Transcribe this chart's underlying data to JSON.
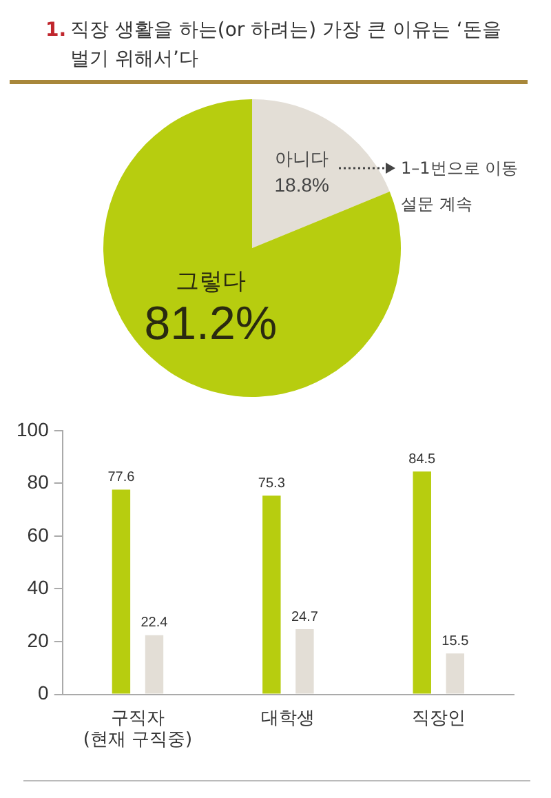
{
  "chart_data": [
    {
      "type": "pie",
      "title": "1. 직장 생활을 하는(or 하려는) 가장 큰 이유는 ‘돈을 벌기 위해서’다",
      "categories": [
        "아니다",
        "그렇다"
      ],
      "values": [
        18.8,
        81.2
      ],
      "colors": [
        "#e3ded6",
        "#b7cd0f"
      ],
      "value_labels": [
        "18.8%",
        "81.2%"
      ],
      "annotations": [
        "1–1번으로 이동",
        "설문 계속"
      ]
    },
    {
      "type": "bar",
      "categories": [
        "구직자\n(현재 구직중)",
        "대학생",
        "직장인"
      ],
      "series": [
        {
          "color": "#b7cd0f",
          "values": [
            77.6,
            75.3,
            84.5
          ]
        },
        {
          "color": "#e3ded6",
          "values": [
            22.4,
            24.7,
            15.5
          ]
        }
      ],
      "ylim": [
        0,
        100
      ],
      "yticks": [
        0,
        20,
        40,
        60,
        80,
        100
      ],
      "data_labels": true
    }
  ]
}
